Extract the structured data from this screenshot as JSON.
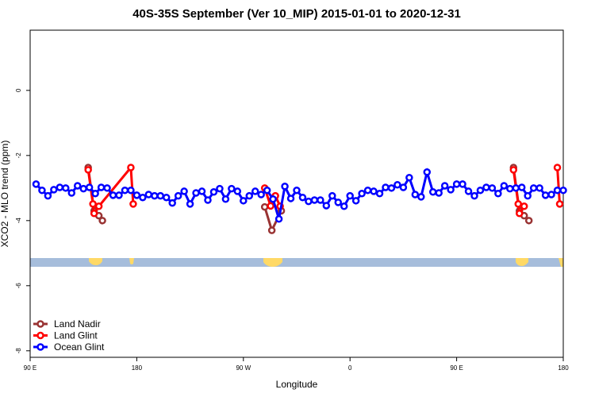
{
  "chart_data": {
    "type": "line",
    "title": "40S-35S September (Ver 10_MIP)   2015-01-01 to 2020-12-31",
    "x_label": "Longitude",
    "y_label": "XCO2 - MLO trend (ppm)",
    "xlim": [
      90,
      540
    ],
    "ylim": [
      -8.2,
      1.85
    ],
    "xticks": [
      {
        "value": 90,
        "label": "90 E"
      },
      {
        "value": 180,
        "label": "180"
      },
      {
        "value": 270,
        "label": "90 W"
      },
      {
        "value": 360,
        "label": "0"
      },
      {
        "value": 450,
        "label": "90 E"
      },
      {
        "value": 540,
        "label": "180"
      }
    ],
    "yticks": [
      0,
      -2,
      -4,
      -6,
      -8
    ],
    "legend": "bottom-left",
    "series": [
      {
        "name": "Land Nadir",
        "color": "#993333",
        "x": [
          139,
          144,
          148,
          151,
          220,
          288,
          294,
          302,
          400,
          498,
          503,
          507,
          511
        ],
        "values": [
          -2.37,
          -3.7,
          -3.85,
          -4.0,
          null,
          -3.58,
          -4.3,
          -3.7,
          null,
          -2.37,
          -3.7,
          -3.85,
          -4.0
        ]
      },
      {
        "name": "Land Glint",
        "color": "#ff0000",
        "x": [
          139,
          143,
          144,
          148,
          175,
          177,
          220,
          288,
          293,
          297,
          301,
          400,
          498,
          502,
          503,
          507,
          520,
          535,
          537
        ],
        "values": [
          -2.44,
          -3.49,
          -3.78,
          -3.56,
          -2.37,
          -3.49,
          null,
          -3.0,
          -3.55,
          -3.24,
          -3.56,
          null,
          -2.44,
          -3.49,
          -3.78,
          -3.56,
          null,
          -2.37,
          -3.49
        ]
      },
      {
        "name": "Ocean Glint",
        "color": "#0000ff",
        "x": [
          95,
          100,
          105,
          110,
          115,
          120,
          125,
          130,
          135,
          140,
          145,
          150,
          155,
          160,
          165,
          170,
          175,
          180,
          185,
          190,
          195,
          200,
          205,
          210,
          215,
          220,
          225,
          230,
          235,
          240,
          245,
          250,
          255,
          260,
          265,
          270,
          275,
          280,
          285,
          290,
          295,
          300,
          305,
          310,
          315,
          320,
          325,
          330,
          335,
          340,
          345,
          350,
          355,
          360,
          365,
          370,
          375,
          380,
          385,
          390,
          395,
          400,
          405,
          410,
          415,
          420,
          425,
          430,
          435,
          440,
          445,
          450,
          455,
          460,
          465,
          470,
          475,
          480,
          485,
          490,
          495,
          500,
          505,
          510,
          515,
          520,
          525,
          530,
          535,
          540
        ],
        "values": [
          -2.88,
          -3.07,
          -3.24,
          -3.05,
          -2.98,
          -3.0,
          -3.15,
          -2.93,
          -3.02,
          -2.98,
          -3.17,
          -2.98,
          -3.0,
          -3.22,
          -3.22,
          -3.07,
          -3.07,
          -3.22,
          -3.29,
          -3.2,
          -3.24,
          -3.24,
          -3.29,
          -3.46,
          -3.24,
          -3.1,
          -3.49,
          -3.15,
          -3.1,
          -3.37,
          -3.12,
          -3.02,
          -3.34,
          -3.02,
          -3.1,
          -3.39,
          -3.24,
          -3.1,
          -3.2,
          -3.07,
          -3.34,
          -3.95,
          -2.95,
          -3.32,
          -3.07,
          -3.29,
          -3.41,
          -3.37,
          -3.37,
          -3.54,
          -3.24,
          -3.44,
          -3.56,
          -3.24,
          -3.39,
          -3.17,
          -3.07,
          -3.1,
          -3.17,
          -2.98,
          -3.0,
          -2.9,
          -2.98,
          -2.68,
          -3.2,
          -3.27,
          -2.51,
          -3.12,
          -3.15,
          -2.93,
          -3.05,
          -2.88,
          -2.88,
          -3.1,
          -3.24,
          -3.07,
          -2.98,
          -3.0,
          -3.17,
          -2.93,
          -3.02,
          -3.0,
          -2.98,
          -3.24,
          -3.0,
          -3.0,
          -3.22,
          -3.2,
          -3.07,
          -3.07
        ]
      }
    ]
  }
}
